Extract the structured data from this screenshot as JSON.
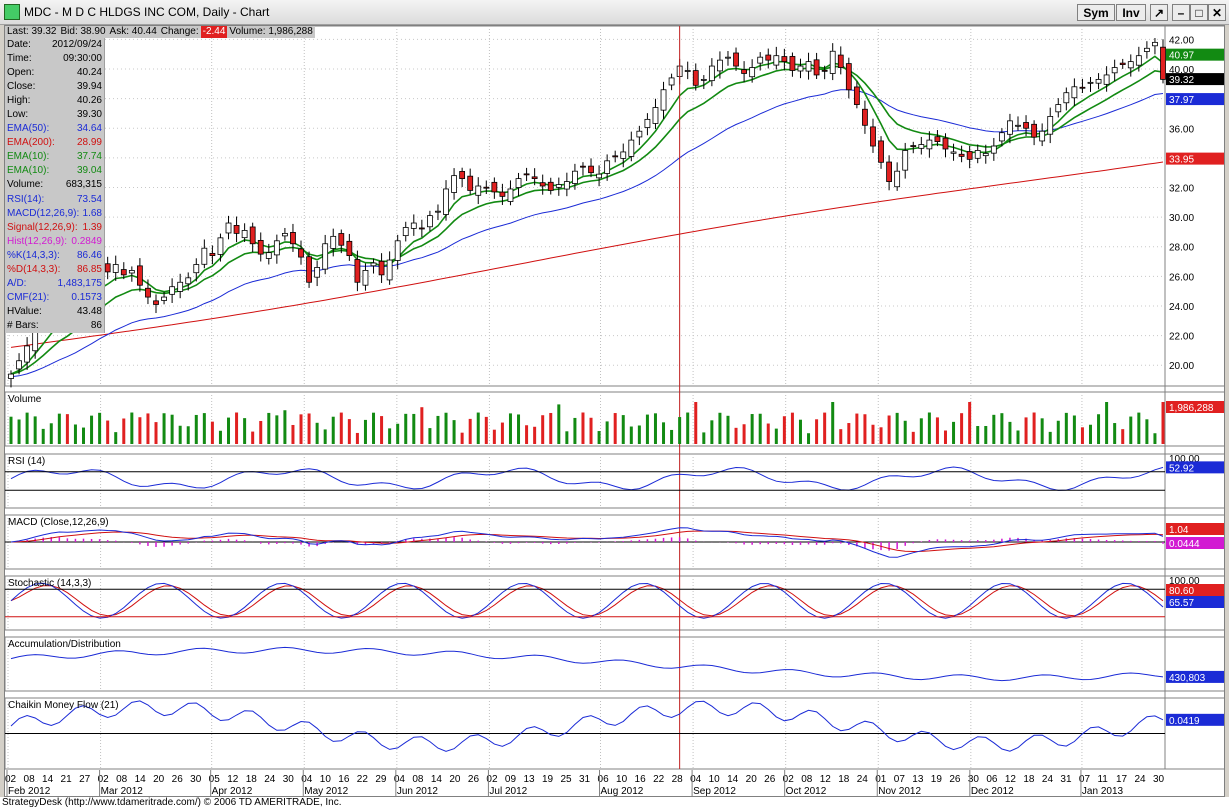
{
  "window": {
    "title": "MDC - M D C HLDGS INC COM, Daily - Chart",
    "buttons": {
      "sym": "Sym",
      "inv": "Inv"
    }
  },
  "quote_bar": {
    "last": "Last: 39.32",
    "bid": "Bid: 38.90",
    "ask": "Ask: 40.44",
    "change_label": "Change:",
    "change_value": "-2.44",
    "volume": "Volume: 1,986,288"
  },
  "info_panel": [
    {
      "label": "Date:",
      "value": "2012/09/24",
      "color": "#000000"
    },
    {
      "label": "Time:",
      "value": "09:30:00",
      "color": "#000000"
    },
    {
      "label": "Open:",
      "value": "40.24",
      "color": "#000000"
    },
    {
      "label": "Close:",
      "value": "39.94",
      "color": "#000000"
    },
    {
      "label": "High:",
      "value": "40.26",
      "color": "#000000"
    },
    {
      "label": "Low:",
      "value": "39.30",
      "color": "#000000"
    },
    {
      "label": "EMA(50):",
      "value": "34.64",
      "color": "#1b2bd6"
    },
    {
      "label": "EMA(200):",
      "value": "28.99",
      "color": "#d01010"
    },
    {
      "label": "EMA(10):",
      "value": "37.74",
      "color": "#128a12"
    },
    {
      "label": "EMA(10):",
      "value": "39.04",
      "color": "#128a12"
    },
    {
      "label": "Volume:",
      "value": "683,315",
      "color": "#000000"
    },
    {
      "label": "RSI(14):",
      "value": "73.54",
      "color": "#1b2bd6"
    },
    {
      "label": "MACD(12,26,9):",
      "value": "1.68",
      "color": "#1b2bd6"
    },
    {
      "label": "Signal(12,26,9):",
      "value": "1.39",
      "color": "#d01010"
    },
    {
      "label": "Hist(12,26,9):",
      "value": "0.2849",
      "color": "#d21ad2"
    },
    {
      "label": "%K(14,3,3):",
      "value": "86.46",
      "color": "#1b2bd6"
    },
    {
      "label": "%D(14,3,3):",
      "value": "86.85",
      "color": "#d01010"
    },
    {
      "label": "A/D:",
      "value": "1,483,175",
      "color": "#1b2bd6"
    },
    {
      "label": "CMF(21):",
      "value": "0.1573",
      "color": "#1b2bd6"
    },
    {
      "label": "HValue:",
      "value": "43.48",
      "color": "#000000"
    },
    {
      "label": "# Bars:",
      "value": "86",
      "color": "#000000"
    }
  ],
  "panels": {
    "volume": {
      "title": "Volume",
      "last_label": "1,986,288"
    },
    "rsi": {
      "title": "RSI (14)",
      "top": "100.00",
      "last_label": "52.92"
    },
    "macd": {
      "title": "MACD (Close,12,26,9)",
      "macd_label": "1.04",
      "hist_label": "0.0444"
    },
    "stoch": {
      "title": "Stochastic (14,3,3)",
      "top": "100.00",
      "k_label": "80.60",
      "d_label": "65.57"
    },
    "ad": {
      "title": "Accumulation/Distribution",
      "last_label": "430,803"
    },
    "cmf": {
      "title": "Chaikin Money Flow (21)",
      "last_label": "0.0419"
    }
  },
  "price_axis": {
    "ticks": [
      "42.00",
      "40.00",
      "38.00",
      "36.00",
      "34.00",
      "32.00",
      "30.00",
      "28.00",
      "26.00",
      "24.00",
      "22.00",
      "20.00"
    ],
    "last_labels": [
      {
        "text": "40.97",
        "bg": "#128a12",
        "fg": "#ffffff"
      },
      {
        "text": "39.32",
        "bg": "#000000",
        "fg": "#ffffff"
      },
      {
        "text": "37.97",
        "bg": "#1b2bd6",
        "fg": "#ffffff"
      },
      {
        "text": "33.95",
        "bg": "#e02020",
        "fg": "#ffffff"
      }
    ]
  },
  "x_axis": {
    "days": [
      "02",
      "08",
      "14",
      "21",
      "27",
      "02",
      "08",
      "14",
      "20",
      "26",
      "30",
      "05",
      "12",
      "18",
      "24",
      "30",
      "04",
      "10",
      "16",
      "22",
      "29",
      "04",
      "08",
      "14",
      "20",
      "26",
      "02",
      "09",
      "13",
      "19",
      "25",
      "31",
      "06",
      "10",
      "16",
      "22",
      "28",
      "04",
      "10",
      "14",
      "20",
      "26",
      "02",
      "08",
      "12",
      "18",
      "24",
      "01",
      "07",
      "13",
      "19",
      "26",
      "30",
      "06",
      "12",
      "18",
      "24",
      "31",
      "07",
      "11",
      "17",
      "24",
      "30"
    ],
    "months": [
      "Feb 2012",
      "Mar 2012",
      "Apr 2012",
      "May 2012",
      "Jun 2012",
      "Jul 2012",
      "Aug 2012",
      "Sep 2012",
      "Oct 2012",
      "Nov 2012",
      "Dec 2012",
      "Jan 2013"
    ]
  },
  "status_bar": "StrategyDesk (http://www.tdameritrade.com/) © 2006 TD AMERITRADE, Inc.",
  "colors": {
    "up": "#128a12",
    "down": "#e02020",
    "ema_fast": "#128a12",
    "ema50": "#1b2bd6",
    "ema200": "#d01010",
    "crosshair": "#c02020",
    "hist": "#d21ad2"
  },
  "chart_data": {
    "type": "candlestick",
    "title": "MDC - M D C HLDGS INC COM, Daily",
    "ylim": [
      19,
      42.5
    ],
    "close": [
      19.4,
      20.3,
      21.3,
      22.4,
      23.1,
      23.9,
      24.2,
      23.8,
      24.6,
      25.6,
      25.9,
      26.5,
      26.3,
      26.8,
      26.1,
      26.4,
      25.4,
      24.6,
      24.1,
      24.6,
      25.3,
      25.6,
      25.9,
      26.8,
      27.9,
      27.4,
      28.6,
      29.6,
      28.9,
      29.1,
      28.2,
      27.5,
      27.6,
      28.4,
      28.9,
      28.2,
      27.3,
      25.6,
      26.6,
      28.2,
      28.7,
      28.1,
      27.4,
      25.6,
      26.4,
      26.9,
      26.1,
      27.1,
      28.4,
      29.3,
      29.6,
      29.2,
      30.1,
      30.4,
      31.9,
      32.8,
      32.6,
      31.8,
      32.1,
      32.0,
      31.7,
      31.4,
      31.9,
      32.6,
      32.9,
      32.6,
      32.1,
      31.8,
      32.2,
      32.4,
      33.1,
      33.4,
      33.0,
      32.9,
      33.8,
      34.1,
      34.4,
      35.2,
      35.8,
      36.6,
      37.4,
      38.6,
      39.4,
      40.2,
      39.9,
      38.9,
      39.3,
      40.2,
      40.6,
      40.8,
      40.2,
      39.7,
      40.1,
      40.8,
      40.6,
      40.9,
      40.5,
      39.9,
      40.2,
      40.5,
      39.6,
      39.9,
      41.2,
      40.1,
      38.6,
      37.6,
      36.2,
      34.8,
      33.7,
      32.4,
      33.1,
      34.5,
      34.8,
      34.9,
      35.2,
      35.1,
      34.6,
      34.4,
      34.1,
      33.9,
      34.5,
      34.3,
      34.8,
      35.7,
      36.5,
      36.2,
      36.0,
      35.4,
      35.8,
      36.8,
      37.6,
      38.4,
      38.8,
      38.7,
      39.1,
      39.3,
      39.6,
      40.1,
      40.3,
      40.5,
      40.9,
      41.4,
      41.8,
      39.3
    ],
    "ema50_last": 37.97,
    "ema200_last": 33.95,
    "ema10_last": 40.97,
    "last": 39.32
  }
}
